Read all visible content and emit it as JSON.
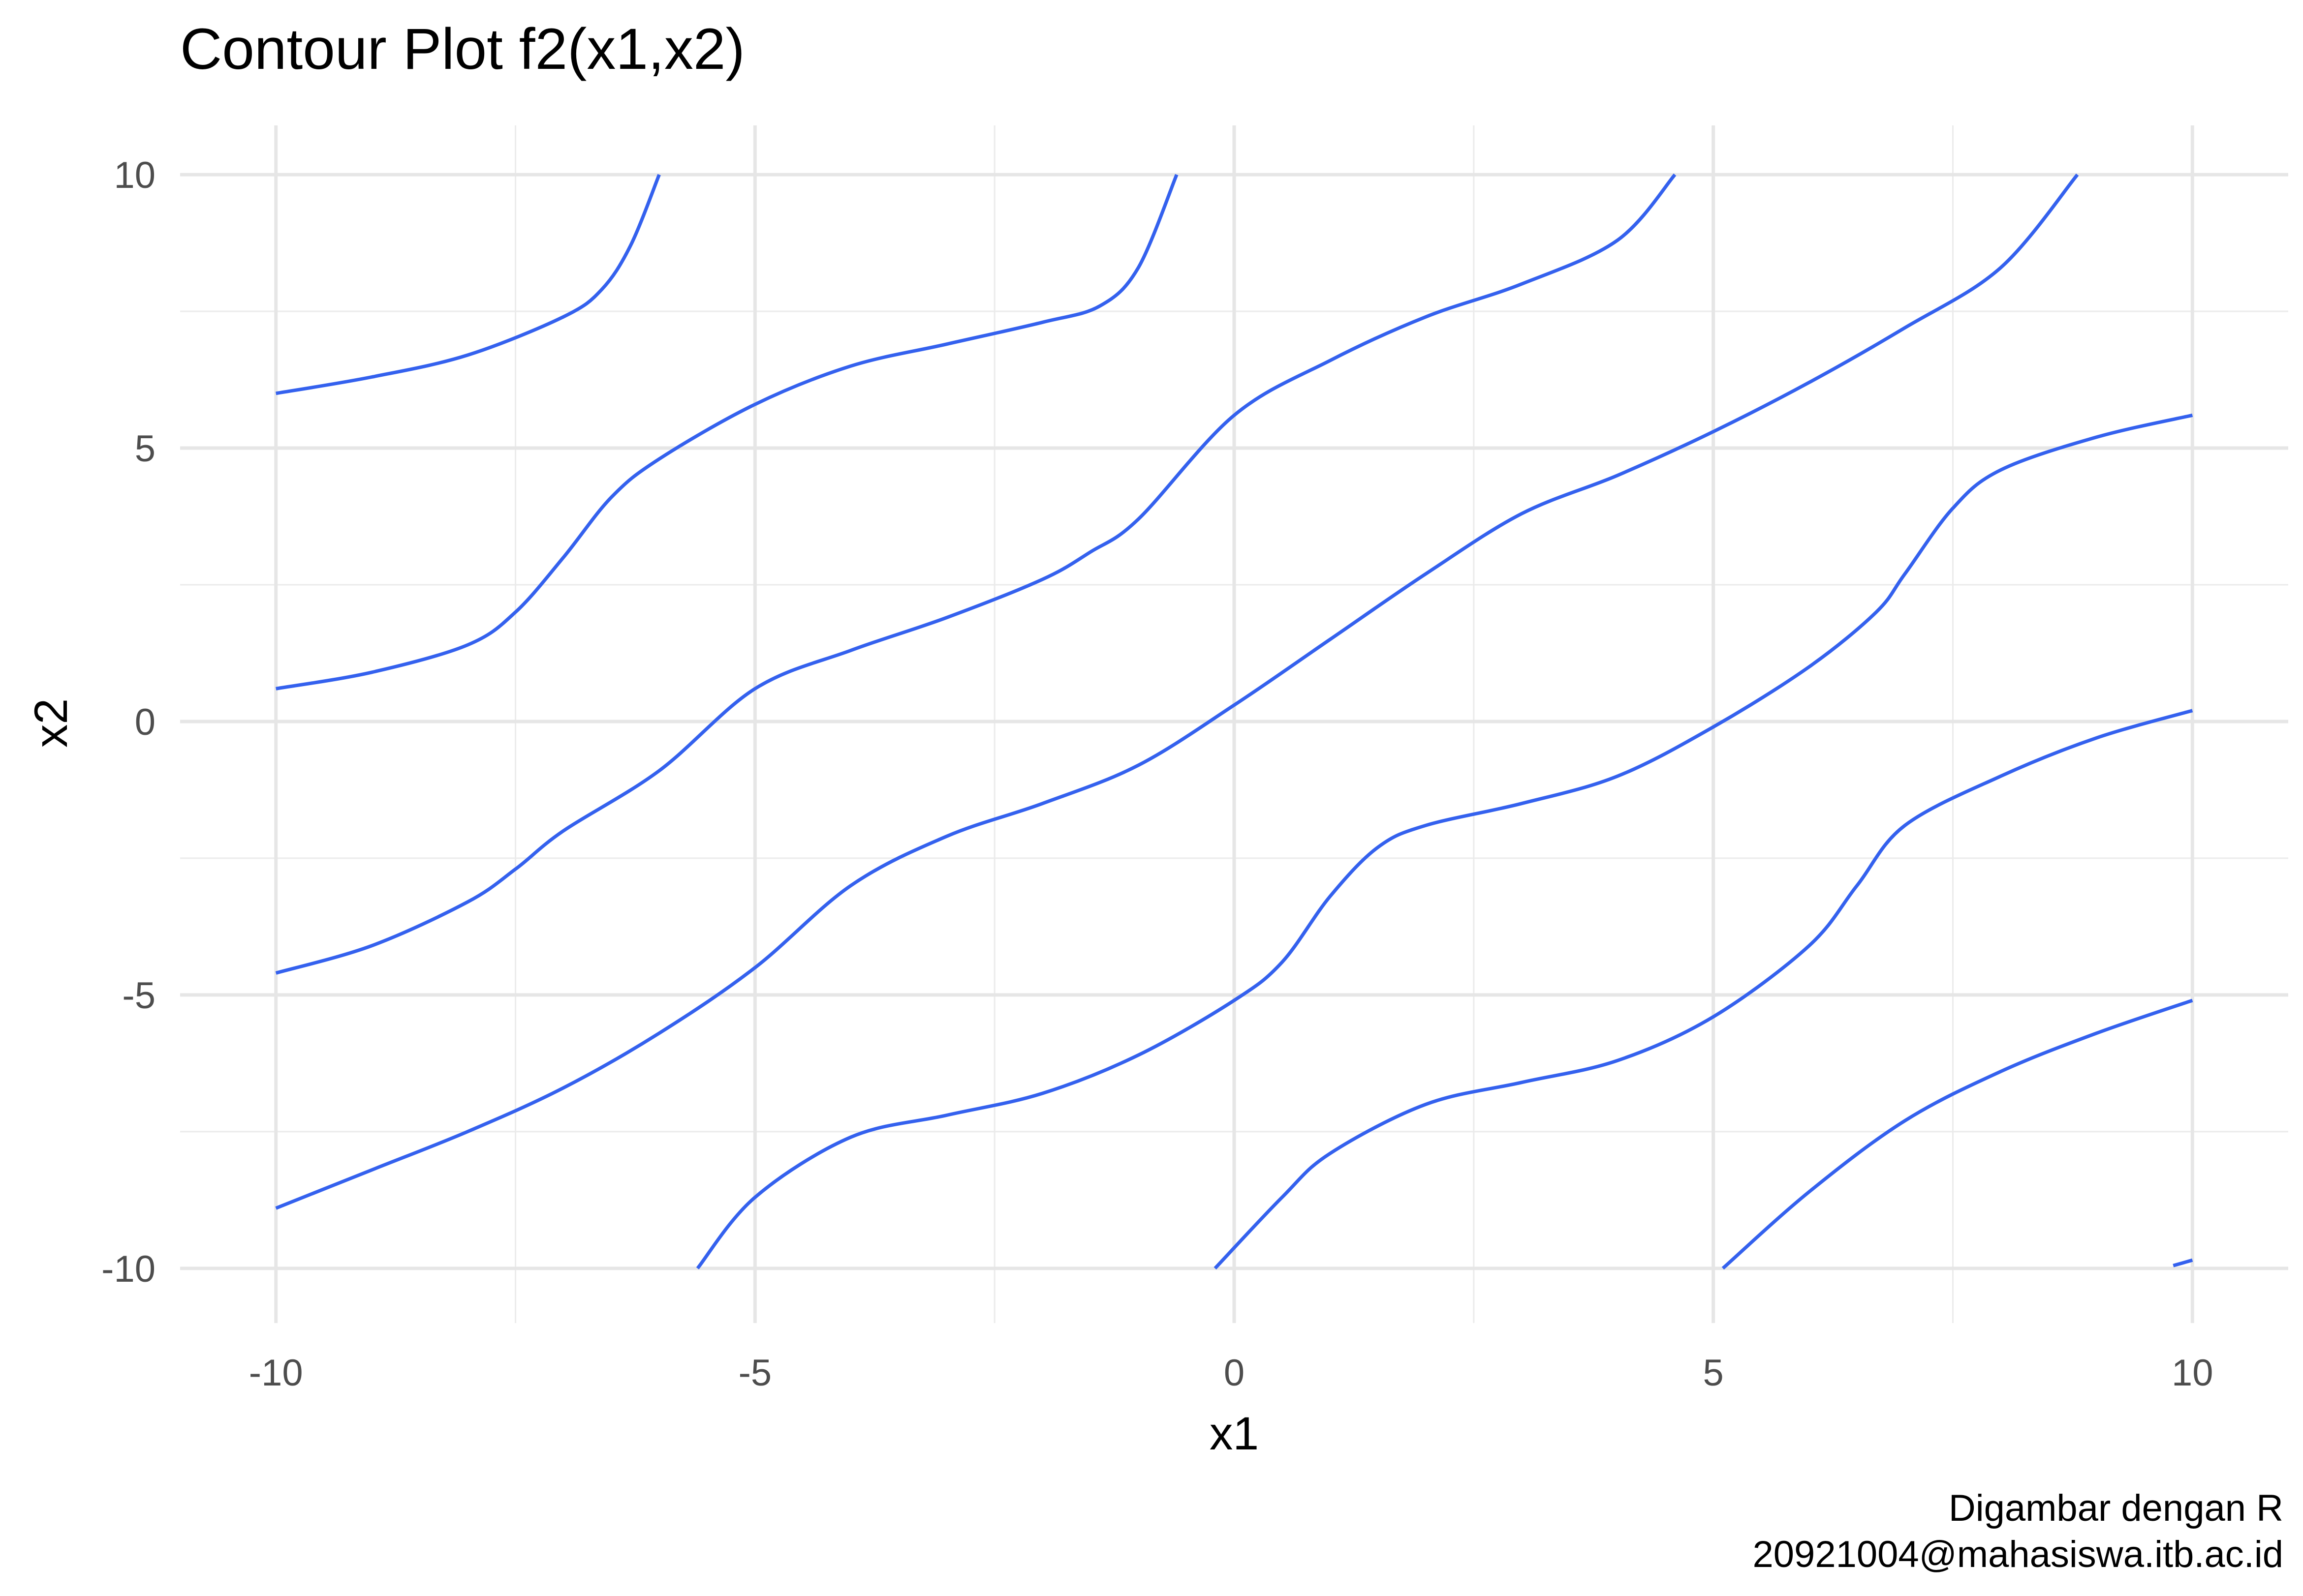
{
  "chart_data": {
    "type": "line",
    "title": "Contour Plot f2(x1,x2)",
    "xlabel": "x1",
    "ylabel": "x2",
    "xlim": [
      -11.0,
      11.0
    ],
    "ylim": [
      -11.0,
      10.9
    ],
    "x_ticks": [
      -10,
      -5,
      0,
      5,
      10
    ],
    "y_ticks": [
      10,
      5,
      0,
      -5,
      -10
    ],
    "x_tick_labels": [
      "-10",
      "-5",
      "0",
      "5",
      "10"
    ],
    "y_tick_labels": [
      "10",
      "5",
      "0",
      "-5",
      "-10"
    ],
    "x_minor_ticks": [
      -7.5,
      -2.5,
      2.5,
      7.5
    ],
    "y_minor_ticks": [
      7.5,
      2.5,
      -2.5,
      -7.5
    ],
    "grid": true,
    "line_color": "#3461ee",
    "caption_lines": [
      "Digambar dengan R",
      "20921004@mahasiswa.itb.ac.id"
    ],
    "series": [
      {
        "points": [
          [
            -10,
            6.0
          ],
          [
            -9,
            6.3
          ],
          [
            -8,
            6.7
          ],
          [
            -7,
            7.4
          ],
          [
            -6.6,
            7.9
          ],
          [
            -6.3,
            8.7
          ],
          [
            -6.0,
            10
          ]
        ]
      },
      {
        "points": [
          [
            -10,
            0.6
          ],
          [
            -9,
            0.9
          ],
          [
            -8,
            1.4
          ],
          [
            -7.5,
            2.0
          ],
          [
            -7.0,
            3.0
          ],
          [
            -6.5,
            4.1
          ],
          [
            -6,
            4.8
          ],
          [
            -5,
            5.8
          ],
          [
            -4,
            6.5
          ],
          [
            -3,
            6.9
          ],
          [
            -2,
            7.3
          ],
          [
            -1.4,
            7.6
          ],
          [
            -1.0,
            8.3
          ],
          [
            -0.6,
            10
          ]
        ]
      },
      {
        "points": [
          [
            -10,
            -4.6
          ],
          [
            -9,
            -4.1
          ],
          [
            -8,
            -3.3
          ],
          [
            -7.5,
            -2.7
          ],
          [
            -7,
            -2.0
          ],
          [
            -6,
            -0.9
          ],
          [
            -5,
            0.6
          ],
          [
            -4,
            1.3
          ],
          [
            -3,
            1.9
          ],
          [
            -2,
            2.6
          ],
          [
            -1.5,
            3.1
          ],
          [
            -1,
            3.7
          ],
          [
            0,
            5.6
          ],
          [
            1,
            6.6
          ],
          [
            2,
            7.4
          ],
          [
            3,
            8.0
          ],
          [
            4,
            8.8
          ],
          [
            4.6,
            10
          ]
        ]
      },
      {
        "points": [
          [
            -10,
            -8.9
          ],
          [
            -9,
            -8.2
          ],
          [
            -8,
            -7.5
          ],
          [
            -7,
            -6.7
          ],
          [
            -6,
            -5.7
          ],
          [
            -5,
            -4.5
          ],
          [
            -4,
            -3.0
          ],
          [
            -3,
            -2.1
          ],
          [
            -2,
            -1.5
          ],
          [
            -1,
            -0.8
          ],
          [
            0,
            0.3
          ],
          [
            1,
            1.5
          ],
          [
            2,
            2.7
          ],
          [
            3,
            3.8
          ],
          [
            4,
            4.5
          ],
          [
            5,
            5.3
          ],
          [
            6,
            6.2
          ],
          [
            7,
            7.2
          ],
          [
            8,
            8.3
          ],
          [
            8.8,
            10
          ]
        ]
      },
      {
        "points": [
          [
            -5.6,
            -10
          ],
          [
            -5,
            -8.7
          ],
          [
            -4,
            -7.6
          ],
          [
            -3,
            -7.2
          ],
          [
            -2,
            -6.8
          ],
          [
            -1,
            -6.1
          ],
          [
            0,
            -5.1
          ],
          [
            0.5,
            -4.4
          ],
          [
            1,
            -3.2
          ],
          [
            1.5,
            -2.3
          ],
          [
            2,
            -1.9
          ],
          [
            3,
            -1.5
          ],
          [
            4,
            -1.0
          ],
          [
            5,
            -0.1
          ],
          [
            6,
            1.0
          ],
          [
            6.7,
            2.0
          ],
          [
            7,
            2.7
          ],
          [
            7.5,
            3.9
          ],
          [
            8,
            4.6
          ],
          [
            9,
            5.2
          ],
          [
            10,
            5.6
          ]
        ]
      },
      {
        "points": [
          [
            -0.2,
            -10
          ],
          [
            0.5,
            -8.7
          ],
          [
            1,
            -7.9
          ],
          [
            2,
            -7.0
          ],
          [
            3,
            -6.6
          ],
          [
            4,
            -6.2
          ],
          [
            5,
            -5.4
          ],
          [
            6,
            -4.1
          ],
          [
            6.5,
            -3.0
          ],
          [
            7,
            -1.9
          ],
          [
            8,
            -1.0
          ],
          [
            9,
            -0.3
          ],
          [
            10,
            0.2
          ]
        ]
      },
      {
        "points": [
          [
            5.1,
            -10
          ],
          [
            6,
            -8.6
          ],
          [
            7,
            -7.3
          ],
          [
            8,
            -6.4
          ],
          [
            9,
            -5.7
          ],
          [
            10,
            -5.1
          ]
        ]
      },
      {
        "points": [
          [
            9.8,
            -9.95
          ],
          [
            10,
            -9.85
          ]
        ]
      }
    ]
  }
}
